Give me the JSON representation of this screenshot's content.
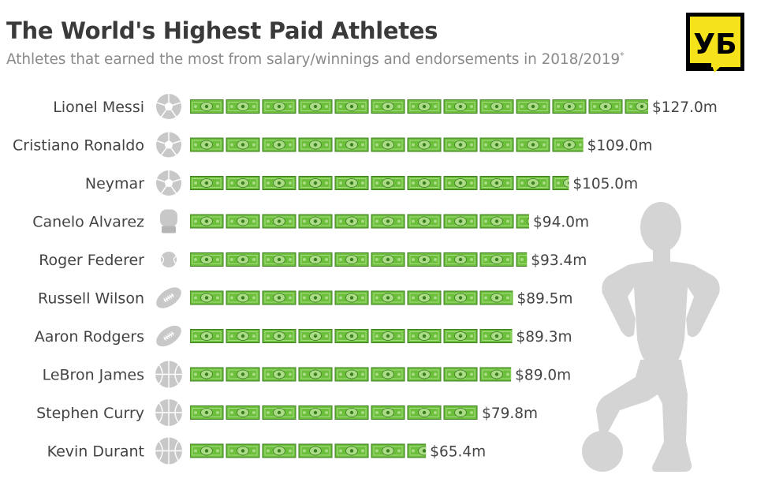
{
  "header": {
    "title": "The World's Highest Paid Athletes",
    "subtitle": "Athletes that earned the most from salary/winnings and endorsements in 2018/2019",
    "subtitle_mark": "*"
  },
  "logo": {
    "text": "УБ",
    "bg": "#f6e21a",
    "fg": "#000000"
  },
  "colors": {
    "bill": "#6cbf3b",
    "bill_dark": "#3d7e22",
    "bill_light": "#a9dc84",
    "icon": "#c8c8c8",
    "silhouette": "#d4d4d4"
  },
  "chart_data": {
    "type": "bar",
    "title": "The World's Highest Paid Athletes",
    "subtitle": "Athletes that earned the most from salary/winnings and endorsements in 2018/2019",
    "orientation": "horizontal",
    "unit": "$m",
    "categories": [
      "Lionel Messi",
      "Cristiano Ronaldo",
      "Neymar",
      "Canelo Alvarez",
      "Roger Federer",
      "Russell Wilson",
      "Aaron Rodgers",
      "LeBron James",
      "Stephen Curry",
      "Kevin Durant"
    ],
    "values": [
      127.0,
      109.0,
      105.0,
      94.0,
      93.4,
      89.5,
      89.3,
      89.0,
      79.8,
      65.4
    ],
    "value_labels": [
      "$127.0m",
      "$109.0m",
      "$105.0m",
      "$94.0m",
      "$93.4m",
      "$89.5m",
      "$89.3m",
      "$89.0m",
      "$79.8m",
      "$65.4m"
    ],
    "icons": [
      "soccer-ball-icon",
      "soccer-ball-icon",
      "soccer-ball-icon",
      "boxing-glove-icon",
      "tennis-ball-icon",
      "football-icon",
      "football-icon",
      "basketball-icon",
      "basketball-icon",
      "basketball-icon"
    ],
    "xlim": [
      0,
      127.0
    ],
    "grid": false,
    "legend": "none"
  }
}
